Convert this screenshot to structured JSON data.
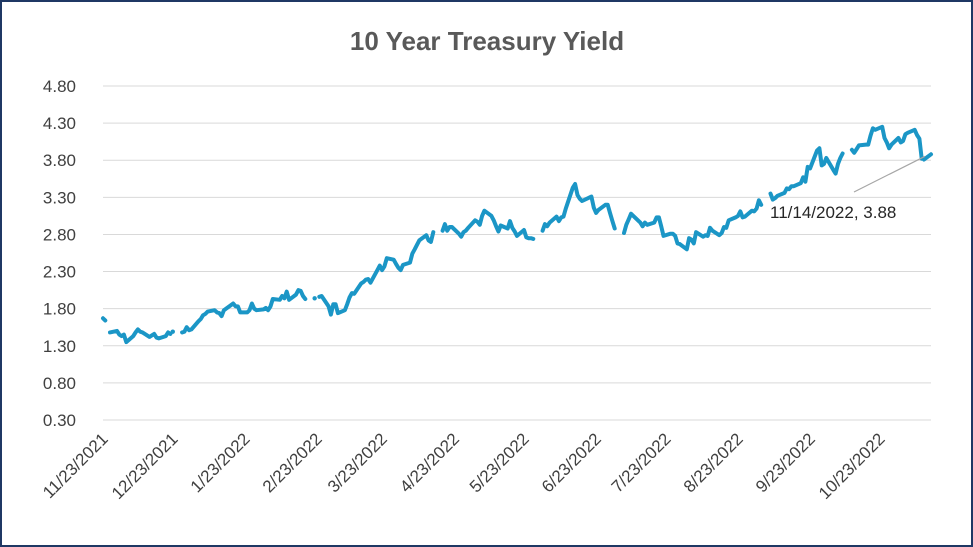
{
  "chart_data": {
    "type": "line",
    "title": "10 Year Treasury Yield",
    "xlabel": "",
    "ylabel": "",
    "ylim": [
      0.3,
      4.8
    ],
    "yticks": [
      "4.80",
      "4.30",
      "3.80",
      "3.30",
      "2.80",
      "2.30",
      "1.80",
      "1.30",
      "0.80",
      "0.30"
    ],
    "xlim": [
      "11/23/2021",
      "11/14/2022"
    ],
    "xticks": [
      "11/23/2021",
      "12/23/2021",
      "1/23/2022",
      "2/23/2022",
      "3/23/2022",
      "4/23/2022",
      "5/23/2022",
      "6/23/2022",
      "7/23/2022",
      "8/23/2022",
      "9/23/2022",
      "10/23/2022"
    ],
    "grid": true,
    "legend": "none",
    "annotation": {
      "label": "11/14/2022, 3.88"
    },
    "series": [
      {
        "color": "#1b96c6",
        "segments": [
          [
            [
              "11/23/2021",
              1.67
            ],
            [
              "11/24/2021",
              1.64
            ]
          ],
          [
            [
              "11/26/2021",
              1.48
            ],
            [
              "11/29/2021",
              1.5
            ],
            [
              "11/30/2021",
              1.45
            ],
            [
              "12/1/2021",
              1.43
            ],
            [
              "12/2/2021",
              1.45
            ],
            [
              "12/3/2021",
              1.35
            ],
            [
              "12/6/2021",
              1.43
            ],
            [
              "12/7/2021",
              1.48
            ],
            [
              "12/8/2021",
              1.52
            ],
            [
              "12/9/2021",
              1.49
            ],
            [
              "12/10/2021",
              1.48
            ],
            [
              "12/13/2021",
              1.42
            ],
            [
              "12/14/2021",
              1.44
            ],
            [
              "12/15/2021",
              1.46
            ],
            [
              "12/16/2021",
              1.41
            ],
            [
              "12/17/2021",
              1.4
            ],
            [
              "12/20/2021",
              1.43
            ],
            [
              "12/21/2021",
              1.48
            ],
            [
              "12/22/2021",
              1.46
            ]
          ],
          [
            [
              "12/23/2021",
              1.49
            ]
          ],
          [
            [
              "12/27/2021",
              1.48
            ],
            [
              "12/28/2021",
              1.49
            ],
            [
              "12/29/2021",
              1.55
            ],
            [
              "12/30/2021",
              1.51
            ],
            [
              "12/31/2021",
              1.52
            ],
            [
              "1/3/2022",
              1.63
            ],
            [
              "1/4/2022",
              1.66
            ],
            [
              "1/5/2022",
              1.71
            ],
            [
              "1/6/2022",
              1.73
            ],
            [
              "1/7/2022",
              1.76
            ],
            [
              "1/10/2022",
              1.78
            ],
            [
              "1/11/2022",
              1.75
            ],
            [
              "1/12/2022",
              1.74
            ],
            [
              "1/13/2022",
              1.7
            ],
            [
              "1/14/2022",
              1.78
            ],
            [
              "1/18/2022",
              1.87
            ],
            [
              "1/19/2022",
              1.83
            ],
            [
              "1/20/2022",
              1.83
            ],
            [
              "1/21/2022",
              1.75
            ],
            [
              "1/24/2022",
              1.75
            ],
            [
              "1/25/2022",
              1.78
            ],
            [
              "1/26/2022",
              1.87
            ],
            [
              "1/27/2022",
              1.8
            ],
            [
              "1/28/2022",
              1.78
            ],
            [
              "1/31/2022",
              1.79
            ],
            [
              "2/1/2022",
              1.81
            ],
            [
              "2/2/2022",
              1.78
            ],
            [
              "2/3/2022",
              1.83
            ],
            [
              "2/4/2022",
              1.93
            ],
            [
              "2/7/2022",
              1.92
            ],
            [
              "2/8/2022",
              1.97
            ],
            [
              "2/9/2022",
              1.94
            ],
            [
              "2/10/2022",
              2.03
            ],
            [
              "2/11/2022",
              1.92
            ],
            [
              "2/14/2022",
              1.99
            ],
            [
              "2/15/2022",
              2.05
            ],
            [
              "2/16/2022",
              2.04
            ],
            [
              "2/17/2022",
              1.97
            ],
            [
              "2/18/2022",
              1.93
            ]
          ],
          [
            [
              "2/22/2022",
              1.94
            ]
          ],
          [
            [
              "2/24/2022",
              1.96
            ],
            [
              "2/25/2022",
              1.97
            ],
            [
              "2/28/2022",
              1.83
            ],
            [
              "3/1/2022",
              1.72
            ],
            [
              "3/2/2022",
              1.86
            ],
            [
              "3/3/2022",
              1.86
            ],
            [
              "3/4/2022",
              1.74
            ],
            [
              "3/7/2022",
              1.78
            ],
            [
              "3/8/2022",
              1.86
            ],
            [
              "3/9/2022",
              1.95
            ],
            [
              "3/10/2022",
              2.01
            ],
            [
              "3/11/2022",
              2.0
            ],
            [
              "3/14/2022",
              2.14
            ],
            [
              "3/15/2022",
              2.16
            ],
            [
              "3/16/2022",
              2.19
            ],
            [
              "3/17/2022",
              2.2
            ],
            [
              "3/18/2022",
              2.15
            ],
            [
              "3/21/2022",
              2.32
            ],
            [
              "3/22/2022",
              2.38
            ],
            [
              "3/23/2022",
              2.32
            ],
            [
              "3/24/2022",
              2.37
            ],
            [
              "3/25/2022",
              2.48
            ],
            [
              "3/28/2022",
              2.46
            ],
            [
              "3/29/2022",
              2.4
            ],
            [
              "3/30/2022",
              2.35
            ],
            [
              "3/31/2022",
              2.32
            ],
            [
              "4/1/2022",
              2.39
            ],
            [
              "4/4/2022",
              2.42
            ],
            [
              "4/5/2022",
              2.54
            ],
            [
              "4/6/2022",
              2.6
            ],
            [
              "4/7/2022",
              2.66
            ],
            [
              "4/8/2022",
              2.72
            ],
            [
              "4/11/2022",
              2.79
            ],
            [
              "4/12/2022",
              2.72
            ],
            [
              "4/13/2022",
              2.7
            ],
            [
              "4/14/2022",
              2.83
            ]
          ],
          [
            [
              "4/18/2022",
              2.85
            ],
            [
              "4/19/2022",
              2.94
            ],
            [
              "4/20/2022",
              2.85
            ],
            [
              "4/21/2022",
              2.9
            ],
            [
              "4/22/2022",
              2.9
            ],
            [
              "4/25/2022",
              2.81
            ],
            [
              "4/26/2022",
              2.77
            ],
            [
              "4/27/2022",
              2.83
            ],
            [
              "4/28/2022",
              2.85
            ],
            [
              "4/29/2022",
              2.89
            ],
            [
              "5/2/2022",
              2.99
            ],
            [
              "5/3/2022",
              2.97
            ],
            [
              "5/4/2022",
              2.93
            ],
            [
              "5/5/2022",
              3.05
            ],
            [
              "5/6/2022",
              3.12
            ],
            [
              "5/9/2022",
              3.05
            ],
            [
              "5/10/2022",
              2.99
            ],
            [
              "5/11/2022",
              2.91
            ],
            [
              "5/12/2022",
              2.84
            ],
            [
              "5/13/2022",
              2.92
            ],
            [
              "5/16/2022",
              2.88
            ],
            [
              "5/17/2022",
              2.98
            ],
            [
              "5/18/2022",
              2.89
            ],
            [
              "5/19/2022",
              2.84
            ],
            [
              "5/20/2022",
              2.78
            ],
            [
              "5/23/2022",
              2.86
            ],
            [
              "5/24/2022",
              2.76
            ],
            [
              "5/25/2022",
              2.75
            ],
            [
              "5/26/2022",
              2.75
            ],
            [
              "5/27/2022",
              2.74
            ]
          ],
          [
            [
              "5/31/2022",
              2.85
            ],
            [
              "6/1/2022",
              2.94
            ],
            [
              "6/2/2022",
              2.91
            ],
            [
              "6/3/2022",
              2.96
            ],
            [
              "6/6/2022",
              3.04
            ],
            [
              "6/7/2022",
              2.98
            ],
            [
              "6/8/2022",
              3.03
            ],
            [
              "6/9/2022",
              3.04
            ],
            [
              "6/10/2022",
              3.15
            ],
            [
              "6/13/2022",
              3.43
            ],
            [
              "6/14/2022",
              3.48
            ],
            [
              "6/15/2022",
              3.33
            ],
            [
              "6/16/2022",
              3.28
            ],
            [
              "6/17/2022",
              3.25
            ],
            [
              "6/21/2022",
              3.31
            ],
            [
              "6/22/2022",
              3.16
            ],
            [
              "6/23/2022",
              3.09
            ],
            [
              "6/24/2022",
              3.13
            ],
            [
              "6/27/2022",
              3.2
            ],
            [
              "6/28/2022",
              3.2
            ],
            [
              "6/29/2022",
              3.09
            ],
            [
              "6/30/2022",
              2.98
            ],
            [
              "7/1/2022",
              2.88
            ]
          ],
          [
            [
              "7/5/2022",
              2.82
            ],
            [
              "7/6/2022",
              2.93
            ],
            [
              "7/7/2022",
              3.0
            ],
            [
              "7/8/2022",
              3.08
            ],
            [
              "7/11/2022",
              2.99
            ],
            [
              "7/12/2022",
              2.96
            ],
            [
              "7/13/2022",
              2.91
            ],
            [
              "7/14/2022",
              2.96
            ],
            [
              "7/15/2022",
              2.93
            ],
            [
              "7/18/2022",
              2.96
            ],
            [
              "7/19/2022",
              3.03
            ],
            [
              "7/20/2022",
              3.03
            ],
            [
              "7/21/2022",
              2.91
            ],
            [
              "7/22/2022",
              2.78
            ],
            [
              "7/25/2022",
              2.81
            ],
            [
              "7/26/2022",
              2.81
            ],
            [
              "7/27/2022",
              2.78
            ],
            [
              "7/28/2022",
              2.68
            ],
            [
              "7/29/2022",
              2.67
            ],
            [
              "8/1/2022",
              2.6
            ],
            [
              "8/2/2022",
              2.75
            ],
            [
              "8/3/2022",
              2.73
            ],
            [
              "8/4/2022",
              2.68
            ],
            [
              "8/5/2022",
              2.83
            ],
            [
              "8/8/2022",
              2.77
            ],
            [
              "8/9/2022",
              2.79
            ],
            [
              "8/10/2022",
              2.78
            ],
            [
              "8/11/2022",
              2.89
            ],
            [
              "8/12/2022",
              2.85
            ],
            [
              "8/15/2022",
              2.79
            ],
            [
              "8/16/2022",
              2.82
            ],
            [
              "8/17/2022",
              2.9
            ],
            [
              "8/18/2022",
              2.89
            ],
            [
              "8/19/2022",
              2.99
            ],
            [
              "8/22/2022",
              3.03
            ],
            [
              "8/23/2022",
              3.05
            ],
            [
              "8/24/2022",
              3.11
            ],
            [
              "8/25/2022",
              3.03
            ],
            [
              "8/26/2022",
              3.04
            ],
            [
              "8/29/2022",
              3.12
            ],
            [
              "8/30/2022",
              3.11
            ],
            [
              "8/31/2022",
              3.15
            ],
            [
              "9/1/2022",
              3.26
            ],
            [
              "9/2/2022",
              3.2
            ]
          ],
          [
            [
              "9/6/2022",
              3.35
            ],
            [
              "9/7/2022",
              3.27
            ],
            [
              "9/8/2022",
              3.29
            ],
            [
              "9/9/2022",
              3.32
            ],
            [
              "9/12/2022",
              3.36
            ],
            [
              "9/13/2022",
              3.42
            ],
            [
              "9/14/2022",
              3.41
            ],
            [
              "9/15/2022",
              3.45
            ],
            [
              "9/16/2022",
              3.45
            ],
            [
              "9/19/2022",
              3.49
            ],
            [
              "9/20/2022",
              3.57
            ],
            [
              "9/21/2022",
              3.51
            ],
            [
              "9/22/2022",
              3.71
            ],
            [
              "9/23/2022",
              3.69
            ],
            [
              "9/26/2022",
              3.93
            ],
            [
              "9/27/2022",
              3.96
            ],
            [
              "9/28/2022",
              3.73
            ],
            [
              "9/29/2022",
              3.75
            ],
            [
              "9/30/2022",
              3.83
            ],
            [
              "10/3/2022",
              3.67
            ],
            [
              "10/4/2022",
              3.62
            ],
            [
              "10/5/2022",
              3.75
            ],
            [
              "10/6/2022",
              3.83
            ],
            [
              "10/7/2022",
              3.89
            ]
          ],
          [
            [
              "10/11/2022",
              3.94
            ],
            [
              "10/12/2022",
              3.9
            ],
            [
              "10/13/2022",
              3.95
            ],
            [
              "10/14/2022",
              4.0
            ],
            [
              "10/17/2022",
              4.01
            ],
            [
              "10/18/2022",
              4.01
            ],
            [
              "10/19/2022",
              4.13
            ],
            [
              "10/20/2022",
              4.23
            ],
            [
              "10/21/2022",
              4.21
            ],
            [
              "10/24/2022",
              4.25
            ],
            [
              "10/25/2022",
              4.1
            ],
            [
              "10/26/2022",
              4.04
            ],
            [
              "10/27/2022",
              3.96
            ],
            [
              "10/28/2022",
              4.01
            ],
            [
              "10/31/2022",
              4.1
            ],
            [
              "11/1/2022",
              4.04
            ],
            [
              "11/2/2022",
              4.06
            ],
            [
              "11/3/2022",
              4.15
            ],
            [
              "11/4/2022",
              4.17
            ],
            [
              "11/7/2022",
              4.21
            ],
            [
              "11/8/2022",
              4.14
            ],
            [
              "11/9/2022",
              4.09
            ],
            [
              "11/10/2022",
              3.82
            ]
          ],
          [
            [
              "11/11/2022",
              3.81
            ],
            [
              "11/14/2022",
              3.88
            ]
          ]
        ]
      }
    ]
  }
}
